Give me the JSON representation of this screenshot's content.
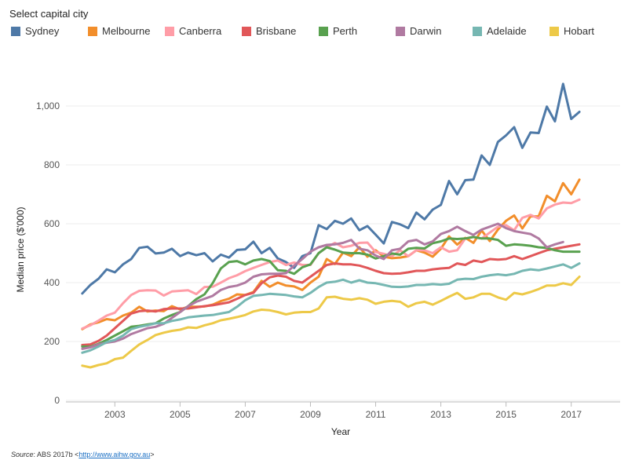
{
  "legend_title": "Select capital city",
  "source": {
    "label": "Source",
    "text": ": ABS 2017b <",
    "link": "http://www.aihw.gov.au",
    "close": ">"
  },
  "chart_data": {
    "type": "line",
    "xlabel": "Year",
    "ylabel": "Median price ($'000)",
    "x_ticks": [
      2003,
      2005,
      2007,
      2009,
      2011,
      2013,
      2015,
      2017
    ],
    "y_ticks": [
      0,
      200,
      400,
      600,
      800,
      1000
    ],
    "y_tick_labels": [
      "0",
      "200",
      "400",
      "600",
      "800",
      "1,000"
    ],
    "xlim": [
      2001.5,
      2018.5
    ],
    "ylim": [
      0,
      1120
    ],
    "grid": true,
    "legend_position": "top",
    "x": [
      2002.0,
      2002.25,
      2002.5,
      2002.75,
      2003.0,
      2003.25,
      2003.5,
      2003.75,
      2004.0,
      2004.25,
      2004.5,
      2004.75,
      2005.0,
      2005.25,
      2005.5,
      2005.75,
      2006.0,
      2006.25,
      2006.5,
      2006.75,
      2007.0,
      2007.25,
      2007.5,
      2007.75,
      2008.0,
      2008.25,
      2008.5,
      2008.75,
      2009.0,
      2009.25,
      2009.5,
      2009.75,
      2010.0,
      2010.25,
      2010.5,
      2010.75,
      2011.0,
      2011.25,
      2011.5,
      2011.75,
      2012.0,
      2012.25,
      2012.5,
      2012.75,
      2013.0,
      2013.25,
      2013.5,
      2013.75,
      2014.0,
      2014.25,
      2014.5,
      2014.75,
      2015.0,
      2015.25,
      2015.5,
      2015.75,
      2016.0,
      2016.25,
      2016.5,
      2016.75,
      2017.0,
      2017.25,
      2017.5,
      2017.75
    ],
    "series": [
      {
        "name": "Sydney",
        "color": "#4e79a7",
        "values": [
          363,
          392,
          413,
          445,
          435,
          462,
          480,
          518,
          522,
          499,
          502,
          515,
          490,
          502,
          493,
          500,
          472,
          495,
          485,
          511,
          513,
          539,
          500,
          518,
          482,
          470,
          450,
          490,
          500,
          595,
          582,
          610,
          600,
          618,
          578,
          592,
          563,
          533,
          606,
          598,
          585,
          638,
          615,
          648,
          664,
          745,
          700,
          748,
          750,
          832,
          800,
          878,
          900,
          928,
          858,
          910,
          908,
          998,
          948,
          1075,
          956,
          980,
          0,
          0
        ]
      },
      {
        "name": "Melbourne",
        "color": "#f28e2b",
        "values": [
          242,
          258,
          265,
          276,
          272,
          288,
          298,
          318,
          302,
          305,
          303,
          320,
          309,
          318,
          318,
          319,
          325,
          337,
          345,
          360,
          358,
          368,
          406,
          386,
          400,
          390,
          387,
          375,
          400,
          420,
          480,
          463,
          502,
          490,
          520,
          488,
          510,
          488,
          483,
          485,
          490,
          510,
          502,
          488,
          515,
          557,
          529,
          552,
          535,
          577,
          541,
          580,
          610,
          628,
          584,
          625,
          625,
          695,
          676,
          738,
          700,
          750,
          0,
          0
        ]
      },
      {
        "name": "Canberra",
        "color": "#ff9da7",
        "values": [
          244,
          255,
          271,
          288,
          298,
          330,
          358,
          372,
          374,
          373,
          356,
          370,
          372,
          374,
          361,
          385,
          386,
          400,
          415,
          425,
          439,
          450,
          460,
          470,
          475,
          460,
          468,
          460,
          460,
          500,
          520,
          535,
          520,
          525,
          535,
          536,
          504,
          498,
          490,
          510,
          490,
          510,
          510,
          500,
          520,
          505,
          510,
          550,
          555,
          550,
          570,
          590,
          595,
          578,
          620,
          630,
          618,
          652,
          665,
          672,
          670,
          682,
          0,
          0
        ]
      },
      {
        "name": "Brisbane",
        "color": "#e15759",
        "values": [
          188,
          190,
          202,
          220,
          245,
          270,
          295,
          303,
          305,
          302,
          310,
          312,
          312,
          312,
          316,
          320,
          323,
          328,
          333,
          345,
          358,
          365,
          398,
          418,
          424,
          420,
          406,
          400,
          420,
          440,
          460,
          465,
          462,
          462,
          458,
          450,
          440,
          432,
          430,
          431,
          435,
          440,
          440,
          445,
          448,
          450,
          465,
          460,
          475,
          470,
          480,
          478,
          480,
          490,
          480,
          490,
          500,
          510,
          515,
          520,
          525,
          530,
          0,
          0
        ]
      },
      {
        "name": "Perth",
        "color": "#59a14f",
        "values": [
          183,
          182,
          192,
          205,
          220,
          235,
          250,
          253,
          258,
          262,
          278,
          290,
          300,
          320,
          344,
          360,
          398,
          448,
          470,
          473,
          462,
          475,
          480,
          473,
          442,
          440,
          430,
          452,
          462,
          500,
          520,
          512,
          502,
          500,
          500,
          495,
          482,
          490,
          499,
          495,
          515,
          518,
          516,
          534,
          540,
          550,
          548,
          550,
          555,
          550,
          550,
          545,
          525,
          530,
          528,
          525,
          520,
          518,
          510,
          505,
          505,
          505,
          0,
          0
        ]
      },
      {
        "name": "Darwin",
        "color": "#b07aa1",
        "values": [
          175,
          180,
          190,
          196,
          200,
          210,
          225,
          235,
          245,
          250,
          260,
          280,
          300,
          320,
          335,
          345,
          355,
          375,
          385,
          390,
          400,
          420,
          428,
          430,
          430,
          432,
          458,
          480,
          505,
          520,
          528,
          530,
          535,
          545,
          515,
          510,
          492,
          480,
          510,
          515,
          540,
          545,
          530,
          540,
          565,
          575,
          590,
          575,
          562,
          580,
          590,
          600,
          585,
          575,
          570,
          565,
          550,
          520,
          530,
          538,
          0,
          0,
          0,
          0
        ]
      },
      {
        "name": "Adelaide",
        "color": "#76b7b2",
        "values": [
          162,
          170,
          183,
          198,
          205,
          220,
          242,
          250,
          255,
          262,
          262,
          270,
          275,
          282,
          285,
          288,
          290,
          295,
          300,
          318,
          340,
          355,
          358,
          362,
          360,
          358,
          353,
          350,
          365,
          385,
          400,
          403,
          410,
          400,
          408,
          400,
          398,
          392,
          386,
          385,
          387,
          392,
          392,
          395,
          393,
          396,
          410,
          413,
          412,
          420,
          425,
          428,
          425,
          430,
          440,
          445,
          442,
          448,
          455,
          462,
          450,
          465,
          0,
          0
        ]
      },
      {
        "name": "Hobart",
        "color": "#edc948",
        "values": [
          118,
          112,
          120,
          126,
          140,
          145,
          168,
          190,
          205,
          222,
          230,
          236,
          240,
          248,
          246,
          255,
          262,
          272,
          277,
          283,
          290,
          302,
          308,
          306,
          300,
          292,
          298,
          300,
          300,
          312,
          350,
          352,
          345,
          342,
          347,
          342,
          328,
          335,
          338,
          335,
          318,
          330,
          335,
          325,
          338,
          352,
          365,
          345,
          350,
          362,
          362,
          350,
          342,
          365,
          360,
          368,
          378,
          390,
          390,
          398,
          392,
          420,
          0,
          0
        ]
      }
    ]
  }
}
